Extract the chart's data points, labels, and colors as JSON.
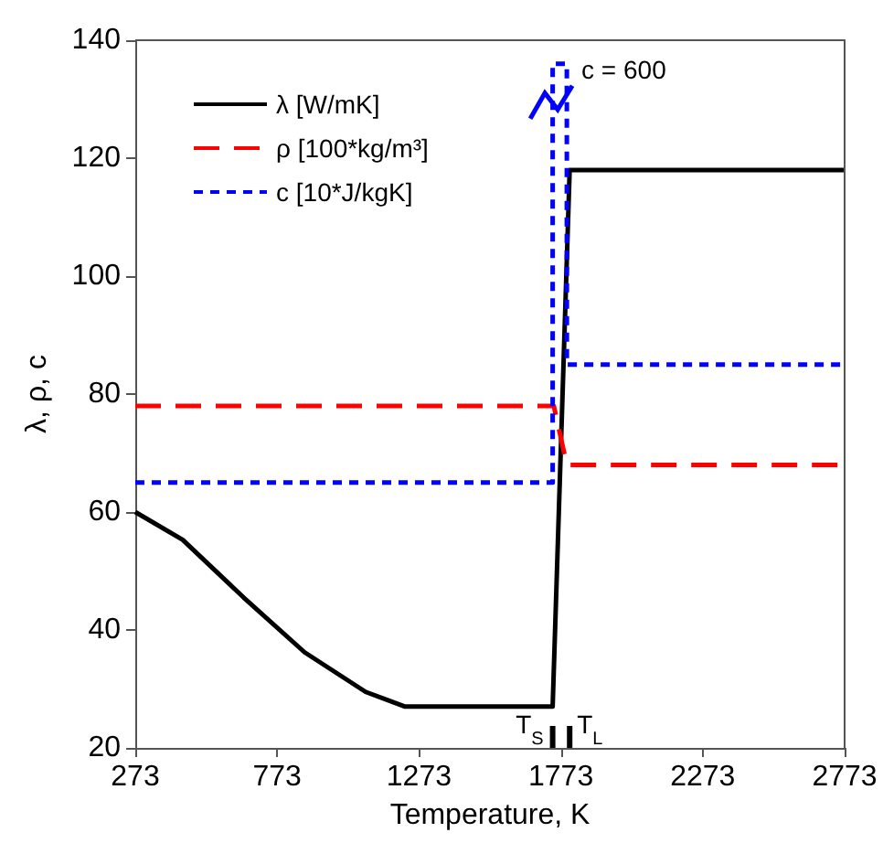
{
  "chart_data": {
    "type": "line",
    "xlabel": "Temperature, K",
    "ylabel": "λ, ρ, c",
    "xlim": [
      273,
      2773
    ],
    "xticks": [
      273,
      773,
      1273,
      1773,
      2273,
      2773
    ],
    "ylim": [
      20,
      140
    ],
    "yticks": [
      20,
      40,
      60,
      80,
      100,
      120,
      140
    ],
    "series": [
      {
        "name": "λ [W/mK]",
        "color": "#000000",
        "line_style": "solid",
        "x": [
          273,
          440,
          655,
          870,
          1085,
          1224,
          1744,
          1804,
          2773
        ],
        "values": [
          60,
          55.3,
          45.5,
          36.2,
          29.5,
          27,
          27,
          118,
          118
        ]
      },
      {
        "name": "ρ [100*kg/m³]",
        "color": "#ff0000",
        "line_style": "dashed",
        "x": [
          273,
          1748,
          1794,
          2773
        ],
        "values": [
          78,
          78,
          68,
          68
        ]
      },
      {
        "name": "c [10*J/kgK]",
        "color": "#0000ff",
        "line_style": "dotted",
        "x": [
          273,
          1744,
          1744,
          1794,
          1794,
          2773
        ],
        "values": [
          65,
          65,
          136,
          136,
          85,
          85
        ]
      }
    ],
    "annotations": [
      "c = 600",
      "T$_{S}$",
      "T$_{L}$"
    ],
    "grid": false,
    "legend": "top left",
    "marker": "none"
  }
}
